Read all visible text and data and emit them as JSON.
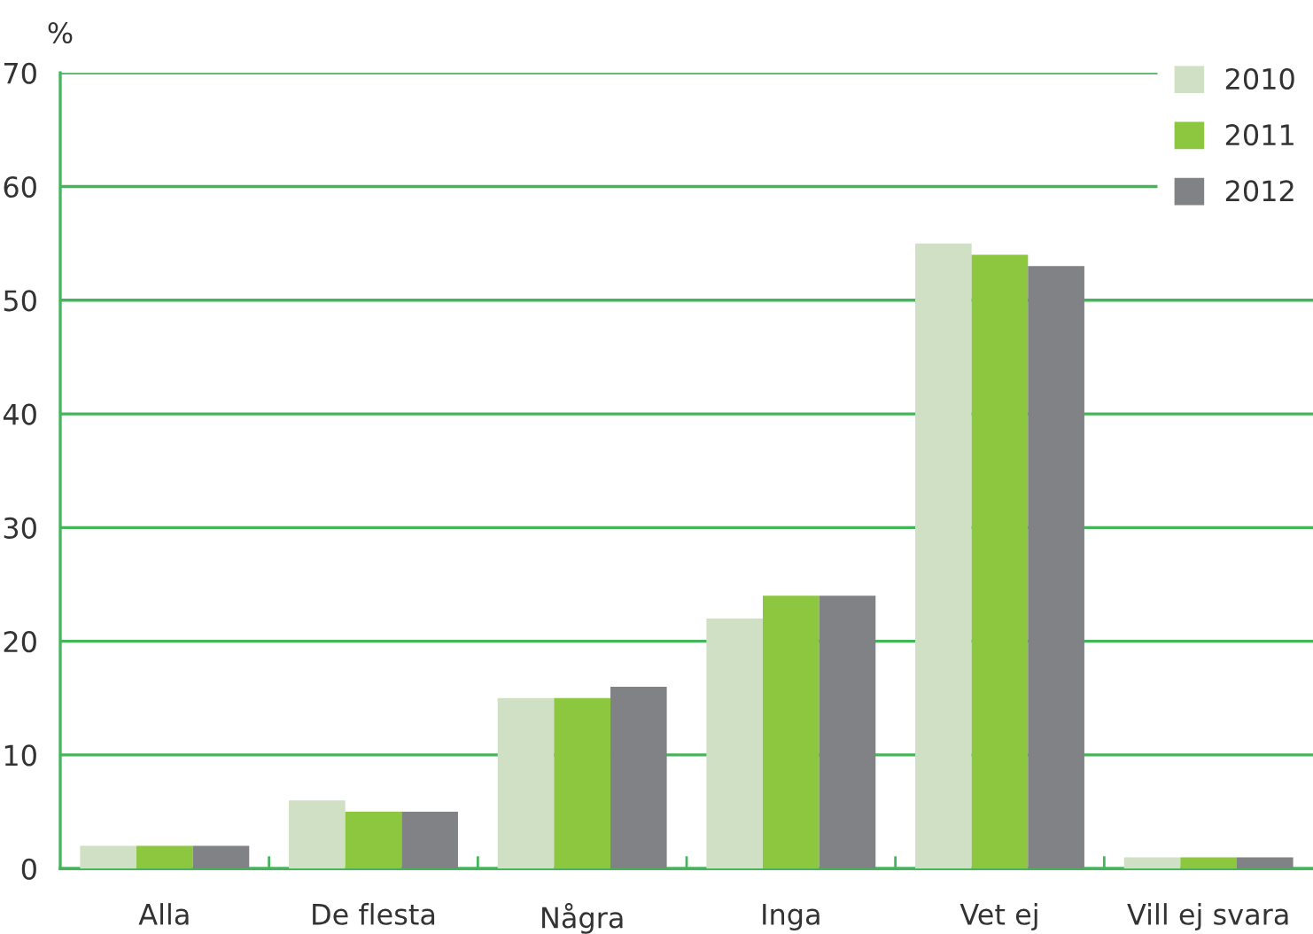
{
  "chart_data": {
    "type": "bar",
    "ylabel": "%",
    "categories": [
      "Alla",
      "De flesta",
      "Några",
      "Inga",
      "Vet ej",
      "Vill ej svara"
    ],
    "series": [
      {
        "name": "2010",
        "color": "#d0e0c4",
        "values": [
          2,
          6,
          15,
          22,
          55,
          1
        ]
      },
      {
        "name": "2011",
        "color": "#8dc63f",
        "values": [
          2,
          5,
          15,
          24,
          54,
          1
        ]
      },
      {
        "name": "2012",
        "color": "#808285",
        "values": [
          2,
          5,
          16,
          24,
          53,
          1
        ]
      }
    ],
    "ylim": [
      0,
      70
    ],
    "yticks": [
      0,
      10,
      20,
      30,
      40,
      50,
      60,
      70
    ],
    "grid": "y",
    "legend": "top right"
  }
}
